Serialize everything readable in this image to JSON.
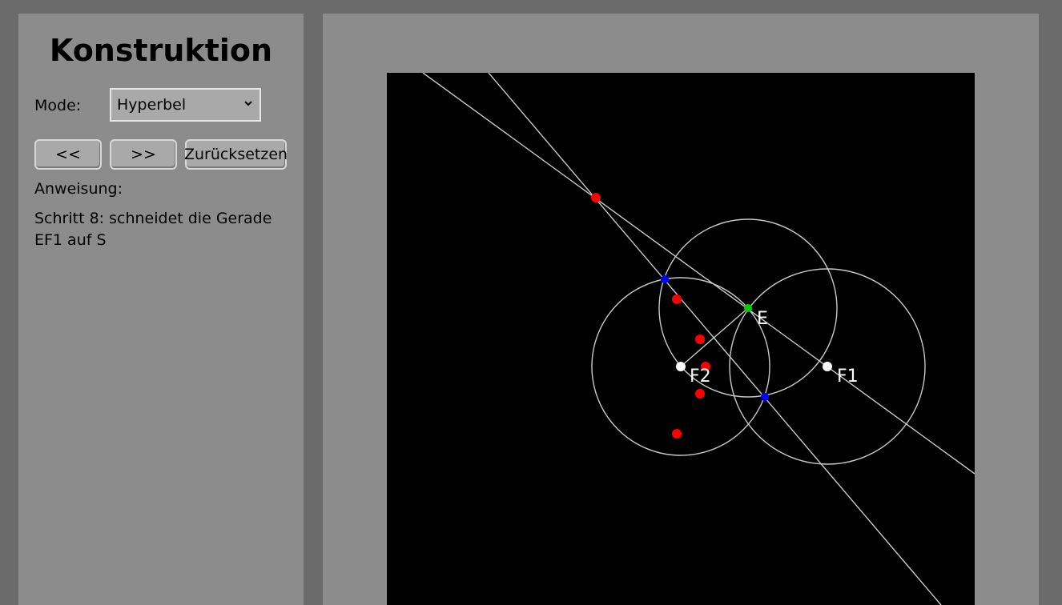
{
  "sidebar": {
    "title": "Konstruktion",
    "mode_label": "Mode:",
    "mode_selected": "Hyperbel",
    "buttons": {
      "prev": "<<",
      "next": ">>",
      "reset": "Zurücksetzen"
    },
    "instruction_label": "Anweisung:",
    "instruction_text": "Schritt 8: schneidet die Gerade EF1 auf S"
  },
  "construction": {
    "labels": {
      "E": "E",
      "F1": "F1",
      "F2": "F2"
    },
    "colors": {
      "background": "#000000",
      "lines": "#c8c8c8",
      "red_points": "#ff0000",
      "blue_points": "#0000ff",
      "green_point": "#00cc00",
      "focus_points": "#ffffff"
    }
  }
}
